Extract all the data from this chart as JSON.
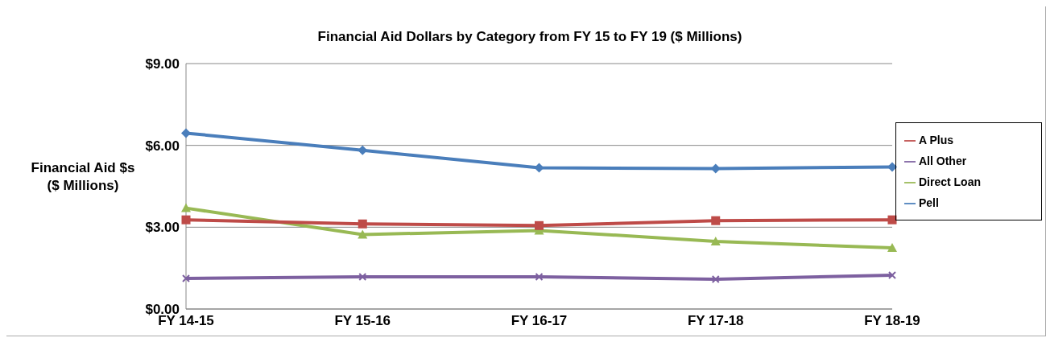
{
  "chart_data": {
    "type": "line",
    "title": "Financial Aid Dollars by Category from FY 15 to FY 19 ($ Millions)",
    "ylabel": "Financial Aid $s ($ Millions)",
    "categories": [
      "FY 14-15",
      "FY 15-16",
      "FY 16-17",
      "FY 17-18",
      "FY 18-19"
    ],
    "series": [
      {
        "name": "Pell",
        "color": "#4a7ebb",
        "marker": "diamond",
        "values": [
          6.45,
          5.82,
          5.18,
          5.15,
          5.21
        ]
      },
      {
        "name": "Direct Loan",
        "color": "#98b954",
        "marker": "triangle",
        "values": [
          3.7,
          2.73,
          2.88,
          2.48,
          2.24
        ]
      },
      {
        "name": "A Plus",
        "color": "#be4b48",
        "marker": "square",
        "values": [
          3.27,
          3.12,
          3.06,
          3.24,
          3.27
        ]
      },
      {
        "name": "All Other",
        "color": "#7d60a0",
        "marker": "cross",
        "values": [
          1.12,
          1.18,
          1.18,
          1.09,
          1.24
        ]
      }
    ],
    "ylim": [
      0,
      9
    ],
    "yticks": [
      {
        "value": 0,
        "label": "$0.00"
      },
      {
        "value": 3,
        "label": "$3.00"
      },
      {
        "value": 6,
        "label": "$6.00"
      },
      {
        "value": 9,
        "label": "$9.00"
      }
    ],
    "grid": "y",
    "legend": "right",
    "line_style": "solid"
  }
}
